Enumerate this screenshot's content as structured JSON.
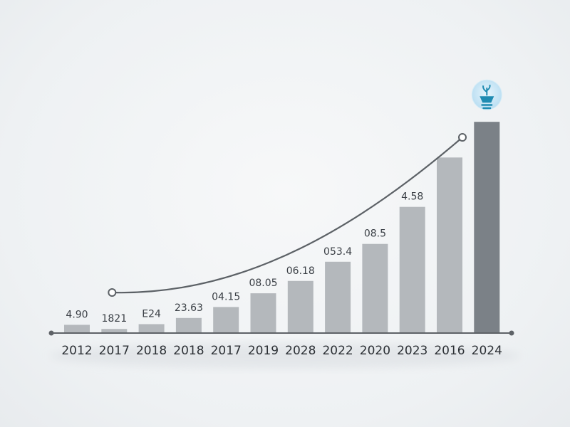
{
  "chart_data": {
    "type": "bar",
    "categories": [
      "2012",
      "2017",
      "2018",
      "2018",
      "2017",
      "2019",
      "2028",
      "2022",
      "2020",
      "2023",
      "2016",
      "2024"
    ],
    "values": [
      0.6,
      0.3,
      0.65,
      1.1,
      1.9,
      2.9,
      3.8,
      5.2,
      6.5,
      9.2,
      12.8,
      15.4
    ],
    "data_labels": [
      "4.90",
      "1821",
      "E24",
      "23.63",
      "04.15",
      "08.05",
      "06.18",
      "053.4",
      "08.5",
      "4.58",
      "",
      ""
    ],
    "ylim": [
      0,
      16.5
    ],
    "grid": false,
    "highlight_index": 11,
    "highlight_icon": "lightbulb-plant-icon",
    "trend_line": true,
    "colors": {
      "bar": "#b4b8bc",
      "bar_highlight": "#7b8187",
      "trend": "#5c6166",
      "axis": "#5e6267",
      "icon_fill": "#c8e6f5",
      "icon_accent": "#1f8bb2"
    }
  }
}
